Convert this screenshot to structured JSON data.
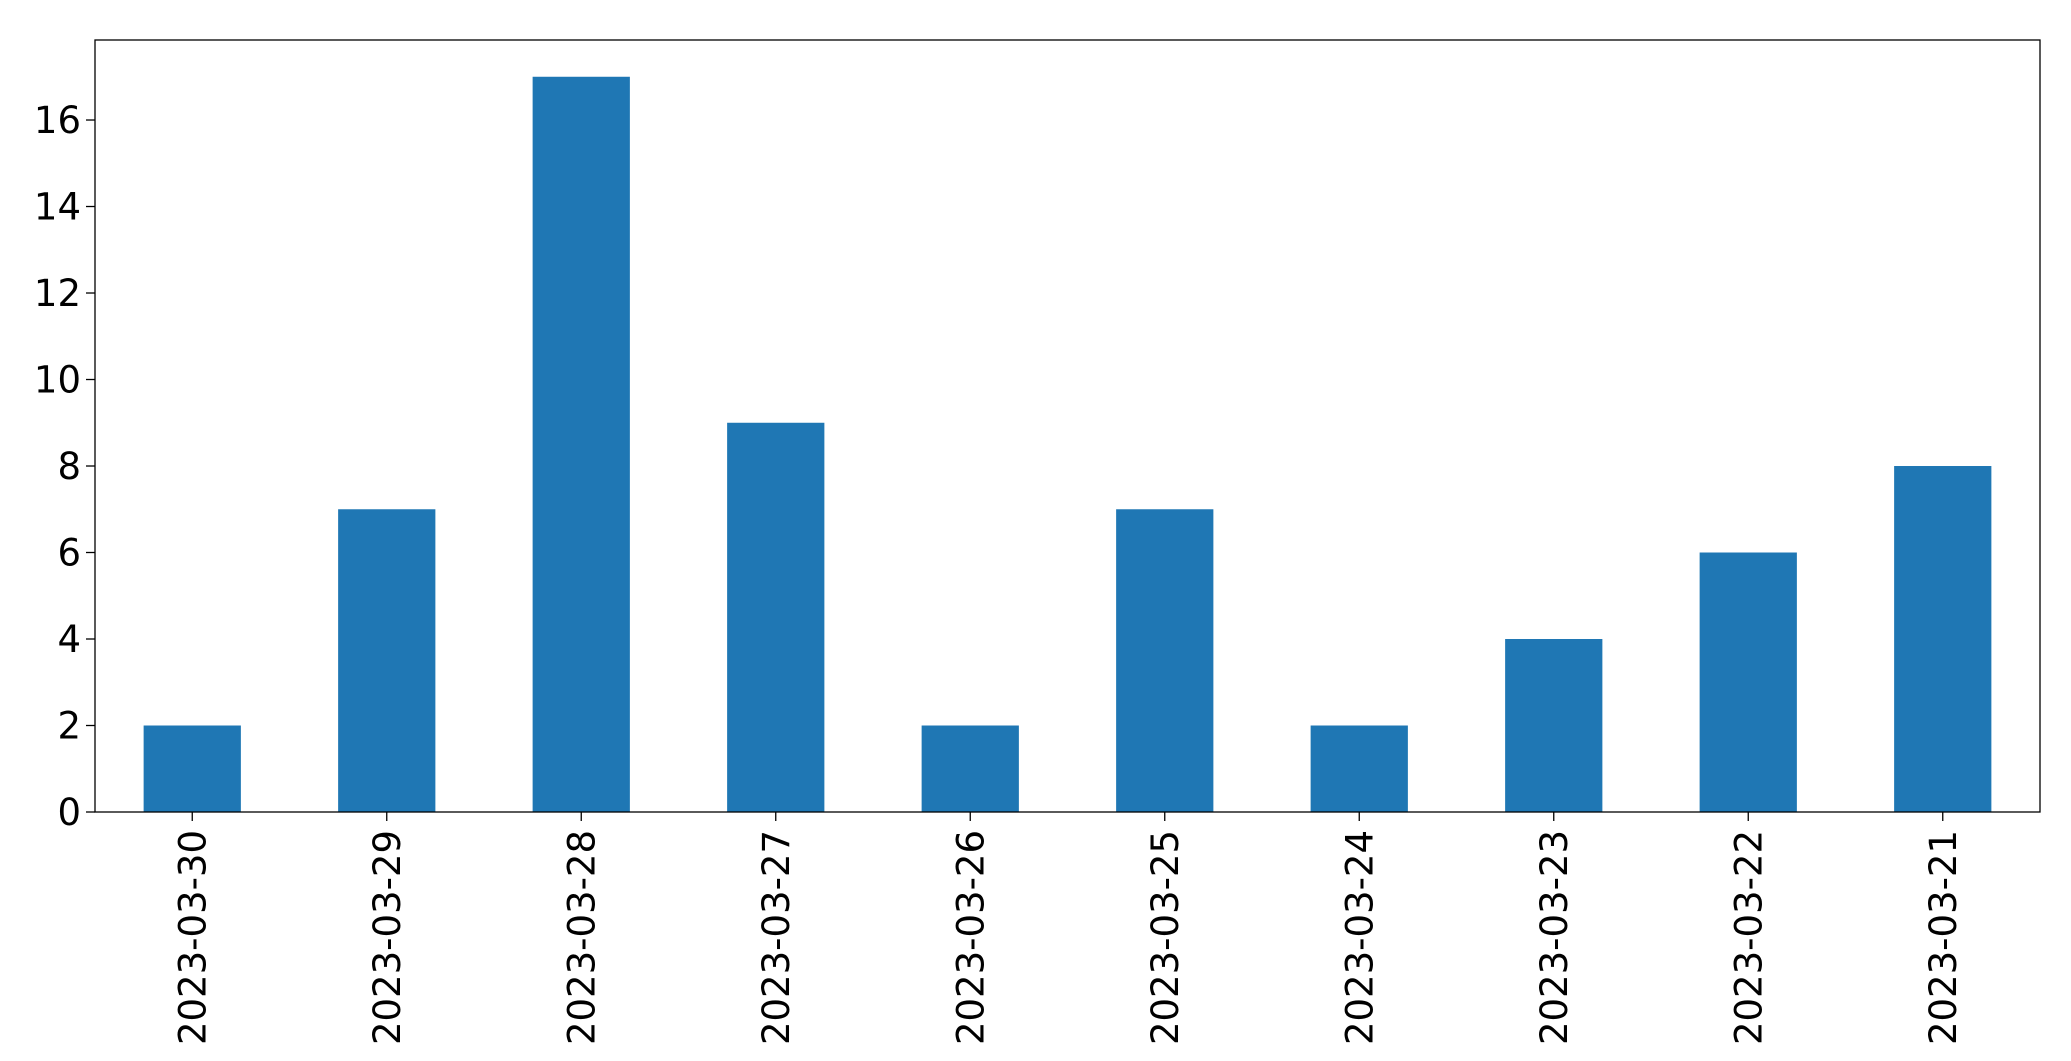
{
  "chart_data": {
    "type": "bar",
    "categories": [
      "2023-03-30",
      "2023-03-29",
      "2023-03-28",
      "2023-03-27",
      "2023-03-26",
      "2023-03-25",
      "2023-03-24",
      "2023-03-23",
      "2023-03-22",
      "2023-03-21"
    ],
    "values": [
      2,
      7,
      17,
      9,
      2,
      7,
      2,
      4,
      6,
      8
    ],
    "yticks": [
      0,
      2,
      4,
      6,
      8,
      10,
      12,
      14,
      16
    ],
    "ylim": [
      0,
      17.85
    ],
    "bar_color": "#1f77b4",
    "title": "",
    "xlabel": "",
    "ylabel": "",
    "grid": false,
    "legend": false
  }
}
